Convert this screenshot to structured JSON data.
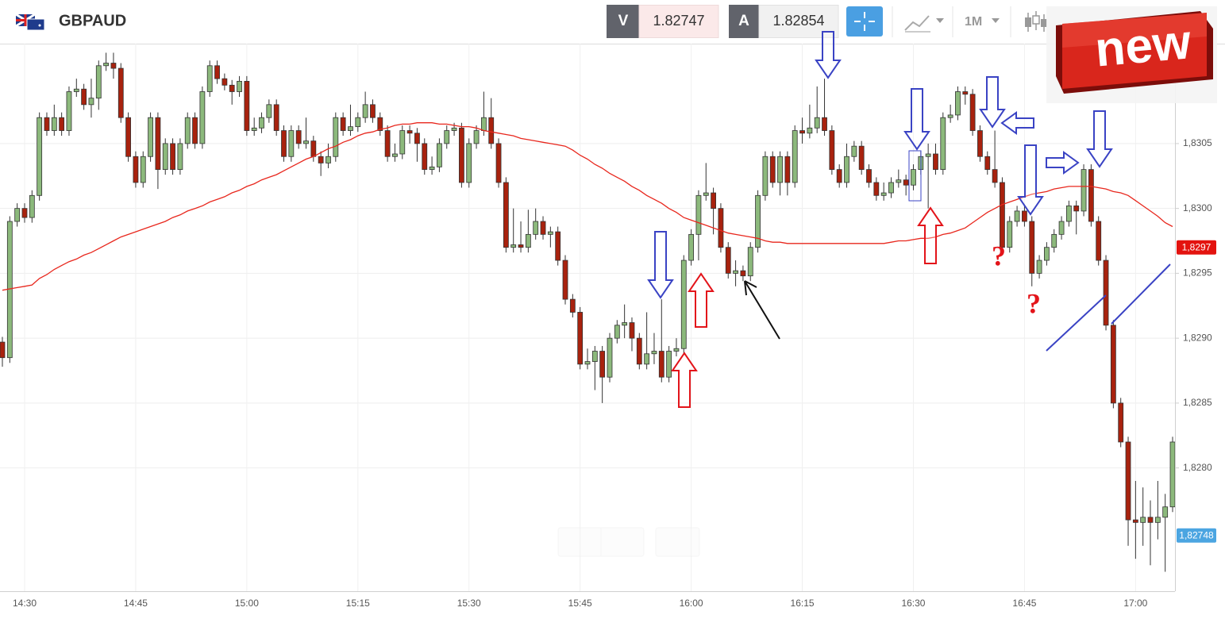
{
  "header": {
    "symbol": "GBPAUD",
    "sell_label": "V",
    "sell_price": "1.82747",
    "buy_label": "A",
    "buy_price": "1.82854",
    "timeframe": "1M"
  },
  "badge": "new",
  "chart_data": {
    "type": "candlestick",
    "categories": [
      null,
      null,
      null,
      "14:30",
      null,
      null,
      null,
      null,
      null,
      null,
      null,
      null,
      null,
      null,
      null,
      null,
      null,
      null,
      "14:45",
      null,
      null,
      null,
      null,
      null,
      null,
      null,
      null,
      null,
      null,
      null,
      null,
      null,
      null,
      "15:00",
      null,
      null,
      null,
      null,
      null,
      null,
      null,
      null,
      null,
      null,
      null,
      null,
      null,
      null,
      "15:15",
      null,
      null,
      null,
      null,
      null,
      null,
      null,
      null,
      null,
      null,
      null,
      null,
      null,
      null,
      "15:30",
      null,
      null,
      null,
      null,
      null,
      null,
      null,
      null,
      null,
      null,
      null,
      null,
      null,
      null,
      "15:45",
      null,
      null,
      null,
      null,
      null,
      null,
      null,
      null,
      null,
      null,
      null,
      null,
      null,
      null,
      "16:00",
      null,
      null,
      null,
      null,
      null,
      null,
      null,
      null,
      null,
      null,
      null,
      null,
      null,
      null,
      "16:15",
      null,
      null,
      null,
      null,
      null,
      null,
      null,
      null,
      null,
      null,
      null,
      null,
      null,
      null,
      "16:30",
      null,
      null,
      null,
      null,
      null,
      null,
      null,
      null,
      null,
      null,
      null,
      null,
      null,
      null,
      "16:45",
      null,
      null,
      null,
      null,
      null,
      null,
      null,
      null,
      null,
      null,
      null,
      null,
      null,
      null,
      "17:00",
      null,
      null,
      null,
      null,
      null
    ],
    "open": [
      1.82897,
      1.82885,
      1.8299,
      1.83,
      1.82993,
      1.8301,
      1.8307,
      1.8306,
      1.8307,
      1.8306,
      1.8309,
      1.83092,
      1.8308,
      1.83085,
      1.8311,
      1.83112,
      1.83108,
      1.8307,
      1.8304,
      1.8302,
      1.8304,
      1.8307,
      1.8303,
      1.8305,
      1.8303,
      1.8305,
      1.8307,
      1.8305,
      1.8309,
      1.8311,
      1.831,
      1.83095,
      1.8309,
      1.83098,
      1.8306,
      1.83062,
      1.8307,
      1.8308,
      1.8306,
      1.8304,
      1.8306,
      1.8305,
      1.83052,
      1.8304,
      1.83035,
      1.8304,
      1.8307,
      1.8306,
      1.83063,
      1.8307,
      1.8308,
      1.8307,
      1.8306,
      1.8304,
      1.83042,
      1.8306,
      1.83058,
      1.8305,
      1.8303,
      1.83032,
      1.8305,
      1.8306,
      1.83062,
      1.8302,
      1.8305,
      1.8306,
      1.8307,
      1.8305,
      1.8302,
      1.8297,
      1.82972,
      1.8297,
      1.8298,
      1.8299,
      1.8298,
      1.82982,
      1.8296,
      1.8293,
      1.8292,
      1.8288,
      1.82882,
      1.8289,
      1.8287,
      1.829,
      1.8291,
      1.82912,
      1.829,
      1.8288,
      1.82888,
      1.8289,
      1.8287,
      1.8289,
      1.82892,
      1.8296,
      1.8298,
      1.8301,
      1.83012,
      1.83,
      1.8297,
      1.8295,
      1.82952,
      1.82948,
      1.8297,
      1.8301,
      1.8304,
      1.8302,
      1.8304,
      1.8302,
      1.8306,
      1.83058,
      1.83062,
      1.8307,
      1.8306,
      1.8303,
      1.8302,
      1.8304,
      1.83048,
      1.8303,
      1.8302,
      1.8301,
      1.83012,
      1.8302,
      1.83022,
      1.83018,
      1.8303,
      1.8304,
      1.83042,
      1.8303,
      1.8307,
      1.83072,
      1.8309,
      1.83088,
      1.8306,
      1.8304,
      1.8303,
      1.8302,
      1.8297,
      1.8299,
      1.82998,
      1.8299,
      1.8295,
      1.8296,
      1.8297,
      1.8298,
      1.8299,
      1.83002,
      1.82998,
      1.8303,
      1.8299,
      1.8296,
      1.8291,
      1.8285,
      1.8282,
      1.8276,
      1.82758,
      1.82762,
      1.82758,
      1.82762,
      1.8277
    ],
    "high": [
      1.82901,
      1.82994,
      1.83004,
      1.83004,
      1.83014,
      1.83074,
      1.83074,
      1.8308,
      1.83074,
      1.83094,
      1.831,
      1.83096,
      1.831,
      1.83114,
      1.8312,
      1.8312,
      1.83112,
      1.83074,
      1.83044,
      1.83044,
      1.83074,
      1.83074,
      1.83054,
      1.83054,
      1.83054,
      1.83074,
      1.83074,
      1.83094,
      1.83114,
      1.83114,
      1.83104,
      1.83099,
      1.83102,
      1.83102,
      1.8307,
      1.83074,
      1.83084,
      1.83084,
      1.83064,
      1.83064,
      1.83064,
      1.8307,
      1.83056,
      1.83044,
      1.8305,
      1.83074,
      1.83074,
      1.8308,
      1.83074,
      1.8309,
      1.83084,
      1.83074,
      1.83064,
      1.8305,
      1.83064,
      1.83064,
      1.83062,
      1.83054,
      1.8304,
      1.83054,
      1.83064,
      1.83066,
      1.83066,
      1.83054,
      1.83064,
      1.8309,
      1.83085,
      1.83054,
      1.83024,
      1.83,
      1.8299,
      1.82999,
      1.83,
      1.82994,
      1.82986,
      1.82986,
      1.82964,
      1.82934,
      1.82924,
      1.82892,
      1.82894,
      1.82894,
      1.82904,
      1.82914,
      1.82926,
      1.82916,
      1.82904,
      1.8292,
      1.82904,
      1.8293,
      1.82894,
      1.829,
      1.82964,
      1.82984,
      1.83014,
      1.83035,
      1.83016,
      1.83004,
      1.82974,
      1.8296,
      1.82956,
      1.82974,
      1.83014,
      1.83044,
      1.83044,
      1.83044,
      1.83044,
      1.83064,
      1.8307,
      1.8308,
      1.83094,
      1.831,
      1.83064,
      1.83034,
      1.8305,
      1.83052,
      1.83052,
      1.83034,
      1.83024,
      1.8302,
      1.83024,
      1.8303,
      1.83026,
      1.83034,
      1.83044,
      1.8305,
      1.8305,
      1.83074,
      1.8308,
      1.83094,
      1.83094,
      1.83092,
      1.83064,
      1.83044,
      1.8306,
      1.83024,
      1.82994,
      1.83002,
      1.83002,
      1.82994,
      1.82964,
      1.82974,
      1.82984,
      1.82994,
      1.83006,
      1.83006,
      1.83034,
      1.83034,
      1.82994,
      1.82964,
      1.82914,
      1.82854,
      1.82824,
      1.8279,
      1.82785,
      1.82775,
      1.8279,
      1.8278,
      1.82824
    ],
    "low": [
      1.82878,
      1.82881,
      1.82986,
      1.82989,
      1.82989,
      1.83006,
      1.83056,
      1.83056,
      1.83056,
      1.83056,
      1.83086,
      1.83076,
      1.8307,
      1.83076,
      1.83106,
      1.831,
      1.83066,
      1.83036,
      1.83016,
      1.83016,
      1.83036,
      1.83015,
      1.83026,
      1.83026,
      1.83026,
      1.83046,
      1.83046,
      1.83046,
      1.83086,
      1.83096,
      1.83091,
      1.8308,
      1.83086,
      1.83056,
      1.83056,
      1.83058,
      1.83066,
      1.83056,
      1.83036,
      1.83036,
      1.83046,
      1.83046,
      1.83036,
      1.83025,
      1.83031,
      1.83036,
      1.83056,
      1.83056,
      1.83059,
      1.83066,
      1.83066,
      1.83056,
      1.83036,
      1.83036,
      1.83038,
      1.8305,
      1.83036,
      1.83026,
      1.83026,
      1.83028,
      1.83046,
      1.83056,
      1.83016,
      1.83016,
      1.83046,
      1.83056,
      1.83046,
      1.83016,
      1.82966,
      1.82966,
      1.82966,
      1.82966,
      1.82976,
      1.82976,
      1.8297,
      1.82956,
      1.82926,
      1.82916,
      1.82876,
      1.82876,
      1.8286,
      1.8285,
      1.82866,
      1.82896,
      1.829,
      1.8289,
      1.82876,
      1.82876,
      1.8288,
      1.82866,
      1.82866,
      1.82886,
      1.82888,
      1.82956,
      1.8296,
      1.83006,
      1.8298,
      1.82966,
      1.82946,
      1.8294,
      1.82944,
      1.82944,
      1.82966,
      1.83006,
      1.83016,
      1.8301,
      1.8301,
      1.83016,
      1.8305,
      1.83054,
      1.83058,
      1.83056,
      1.83026,
      1.83016,
      1.83016,
      1.83036,
      1.83026,
      1.83016,
      1.83006,
      1.83006,
      1.83008,
      1.83016,
      1.8301,
      1.83014,
      1.83026,
      1.83,
      1.83026,
      1.83026,
      1.83066,
      1.83068,
      1.8308,
      1.83056,
      1.83036,
      1.83026,
      1.83016,
      1.82966,
      1.82966,
      1.82986,
      1.82986,
      1.8294,
      1.82946,
      1.82956,
      1.82966,
      1.82976,
      1.82986,
      1.8298,
      1.82994,
      1.82986,
      1.82956,
      1.82906,
      1.82846,
      1.82816,
      1.8274,
      1.8273,
      1.8274,
      1.82725,
      1.82745,
      1.8272,
      1.82766
    ],
    "close": [
      1.82885,
      1.8299,
      1.83,
      1.82993,
      1.8301,
      1.8307,
      1.8306,
      1.8307,
      1.8306,
      1.8309,
      1.83092,
      1.8308,
      1.83085,
      1.8311,
      1.83112,
      1.83108,
      1.8307,
      1.8304,
      1.8302,
      1.8304,
      1.8307,
      1.8303,
      1.8305,
      1.8303,
      1.8305,
      1.8307,
      1.8305,
      1.8309,
      1.8311,
      1.831,
      1.83095,
      1.8309,
      1.83098,
      1.8306,
      1.83062,
      1.8307,
      1.8308,
      1.8306,
      1.8304,
      1.8306,
      1.8305,
      1.83052,
      1.8304,
      1.83035,
      1.8304,
      1.8307,
      1.8306,
      1.83063,
      1.8307,
      1.8308,
      1.8307,
      1.8306,
      1.8304,
      1.83042,
      1.8306,
      1.83058,
      1.8305,
      1.8303,
      1.83032,
      1.8305,
      1.8306,
      1.83062,
      1.8302,
      1.8305,
      1.8306,
      1.8307,
      1.8305,
      1.8302,
      1.8297,
      1.82972,
      1.8297,
      1.8298,
      1.8299,
      1.8298,
      1.82982,
      1.8296,
      1.8293,
      1.8292,
      1.8288,
      1.82882,
      1.8289,
      1.8287,
      1.829,
      1.8291,
      1.82912,
      1.829,
      1.8288,
      1.82888,
      1.8289,
      1.8287,
      1.8289,
      1.82892,
      1.8296,
      1.8298,
      1.8301,
      1.83012,
      1.83,
      1.8297,
      1.8295,
      1.82952,
      1.82948,
      1.8297,
      1.8301,
      1.8304,
      1.8302,
      1.8304,
      1.8302,
      1.8306,
      1.83058,
      1.83062,
      1.8307,
      1.8306,
      1.8303,
      1.8302,
      1.8304,
      1.83048,
      1.8303,
      1.8302,
      1.8301,
      1.83012,
      1.8302,
      1.83022,
      1.83018,
      1.8303,
      1.8304,
      1.83042,
      1.8303,
      1.8307,
      1.83072,
      1.8309,
      1.83088,
      1.8306,
      1.8304,
      1.8303,
      1.8302,
      1.8297,
      1.8299,
      1.82998,
      1.8299,
      1.8295,
      1.8296,
      1.8297,
      1.8298,
      1.8299,
      1.83002,
      1.82998,
      1.8303,
      1.8299,
      1.8296,
      1.8291,
      1.8285,
      1.8282,
      1.8276,
      1.82758,
      1.82762,
      1.82758,
      1.82762,
      1.8277,
      1.8282
    ],
    "ma_values": [
      1.82937,
      1.82938,
      1.82939,
      1.8294,
      1.82941,
      1.82946,
      1.82949,
      1.82953,
      1.82956,
      1.82959,
      1.82961,
      1.82964,
      1.82966,
      1.82969,
      1.82972,
      1.82975,
      1.82978,
      1.8298,
      1.82982,
      1.82984,
      1.82986,
      1.82988,
      1.8299,
      1.82993,
      1.82995,
      1.82998,
      1.83,
      1.83002,
      1.83005,
      1.83007,
      1.83009,
      1.83012,
      1.83014,
      1.83017,
      1.83019,
      1.83022,
      1.83024,
      1.83026,
      1.83029,
      1.83032,
      1.83035,
      1.83038,
      1.8304,
      1.83043,
      1.83046,
      1.83048,
      1.83051,
      1.83053,
      1.83056,
      1.83058,
      1.83059,
      1.83061,
      1.83062,
      1.83064,
      1.83065,
      1.83065,
      1.83066,
      1.83066,
      1.83066,
      1.83065,
      1.83065,
      1.83064,
      1.83063,
      1.83063,
      1.83062,
      1.8306,
      1.83059,
      1.83058,
      1.83057,
      1.83056,
      1.83054,
      1.83053,
      1.83052,
      1.83051,
      1.8305,
      1.83049,
      1.83048,
      1.83045,
      1.83041,
      1.83038,
      1.83034,
      1.83031,
      1.83027,
      1.83024,
      1.83021,
      1.83017,
      1.83014,
      1.8301,
      1.83007,
      1.83004,
      1.83,
      1.82997,
      1.82993,
      1.82991,
      1.82989,
      1.82987,
      1.82985,
      1.82983,
      1.82981,
      1.8298,
      1.82979,
      1.82978,
      1.82977,
      1.82975,
      1.82974,
      1.82974,
      1.82973,
      1.82973,
      1.82973,
      1.82973,
      1.82973,
      1.82973,
      1.82973,
      1.82973,
      1.82973,
      1.82973,
      1.82973,
      1.82973,
      1.82973,
      1.82973,
      1.82974,
      1.82975,
      1.82975,
      1.82976,
      1.82977,
      1.82977,
      1.82978,
      1.8298,
      1.82981,
      1.82983,
      1.82985,
      1.82989,
      1.82993,
      1.82997,
      1.83,
      1.83003,
      1.83005,
      1.83007,
      1.83009,
      1.83011,
      1.83012,
      1.83013,
      1.83015,
      1.83016,
      1.83017,
      1.83017,
      1.83017,
      1.83017,
      1.83016,
      1.83015,
      1.83013,
      1.83012,
      1.8301,
      1.83006,
      1.83002,
      1.82998,
      1.82994,
      1.82989,
      1.82986
    ],
    "ma_color": "#e8271d",
    "up_color": "#8cb97c",
    "down_color": "#a8220e",
    "ylim": [
      1.82705,
      1.83127
    ],
    "yticks": [
      {
        "value": 1.828,
        "label": "1,8280"
      },
      {
        "value": 1.8285,
        "label": "1,8285"
      },
      {
        "value": 1.829,
        "label": "1,8290"
      },
      {
        "value": 1.8295,
        "label": "1,8295"
      },
      {
        "value": 1.83,
        "label": "1,8300"
      },
      {
        "value": 1.8305,
        "label": "1,8305"
      }
    ],
    "grid": true,
    "price_tags": [
      {
        "value": 1.8297,
        "label": "1,8297",
        "color": "#e3130f"
      },
      {
        "value": 1.82748,
        "label": "1,82748",
        "color": "#4ba5e1"
      }
    ],
    "annotations": [
      "?",
      "?"
    ]
  }
}
